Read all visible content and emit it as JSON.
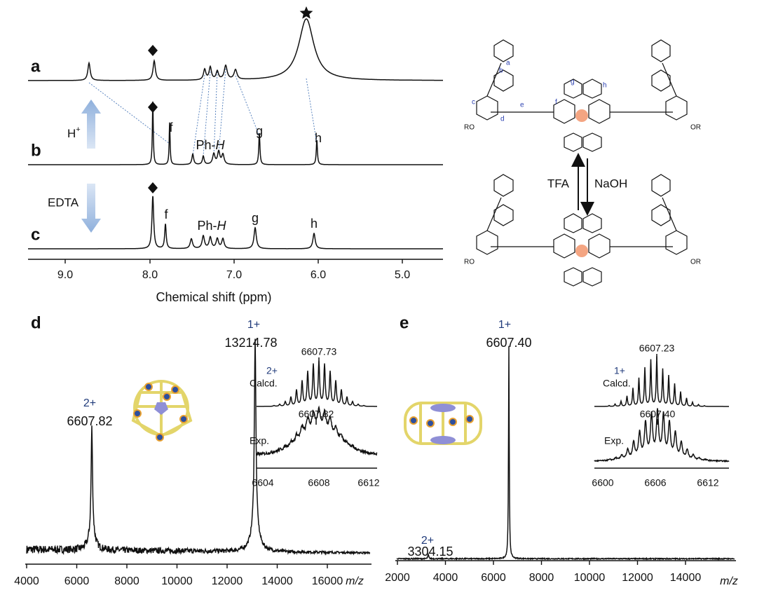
{
  "nmr": {
    "trace_labels": [
      "a",
      "b",
      "c"
    ],
    "b_peaks": [
      "f",
      "g",
      "h"
    ],
    "c_peaks": [
      "f",
      "g",
      "h"
    ],
    "ph_h": {
      "prefix": "Ph-",
      "italic": "H"
    },
    "acid": {
      "text": "H",
      "sup": "+"
    },
    "chelator": "EDTA",
    "xticks": [
      "9.0",
      "8.0",
      "7.0",
      "6.0",
      "5.0"
    ],
    "xlabel": "Chemical shift (ppm)"
  },
  "scheme": {
    "reagents": [
      "TFA",
      "NaOH"
    ],
    "sites": [
      "a",
      "b",
      "c",
      "d",
      "e",
      "f",
      "g",
      "h"
    ],
    "substituents": [
      "RO",
      "OR"
    ]
  },
  "ms_d": {
    "label": "d",
    "peaks": [
      {
        "charge": "2+",
        "mz": "6607.82"
      },
      {
        "charge": "1+",
        "mz": "13214.78"
      }
    ],
    "inset": {
      "charge": "2+",
      "calcd": "Calcd.",
      "calcd_peak": "6607.73",
      "exp": "Exp.",
      "exp_peak": "6607.82",
      "xticks": [
        "6604",
        "6608",
        "6612"
      ]
    },
    "xticks": [
      "4000",
      "6000",
      "8000",
      "10000",
      "12000",
      "14000",
      "16000"
    ],
    "xlabel": "m/z"
  },
  "ms_e": {
    "label": "e",
    "peaks": [
      {
        "charge": "1+",
        "mz": "6607.40"
      },
      {
        "charge": "2+",
        "mz": "3304.15"
      }
    ],
    "inset": {
      "charge": "1+",
      "calcd": "Calcd.",
      "calcd_peak": "6607.23",
      "exp": "Exp.",
      "exp_peak": "6607.40",
      "xticks": [
        "6600",
        "6606",
        "6612"
      ]
    },
    "xticks": [
      "2000",
      "4000",
      "6000",
      "8000",
      "10000",
      "12000",
      "14000"
    ],
    "xlabel": "m/z"
  }
}
